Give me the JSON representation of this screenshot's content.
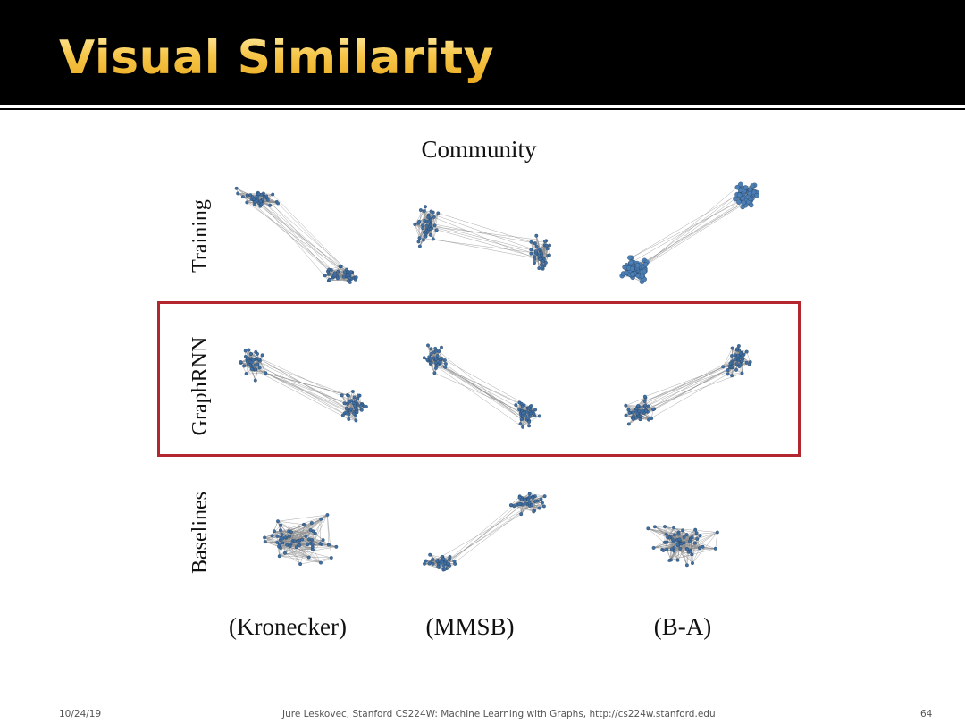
{
  "slide": {
    "title": "Visual Similarity",
    "figure_title": "Community",
    "rows": [
      "Training",
      "GraphRNN",
      "Baselines"
    ],
    "columns": [
      "(Kronecker)",
      "(MMSB)",
      "(B-A)"
    ],
    "footer": {
      "date": "10/24/19",
      "credit": "Jure Leskovec, Stanford CS224W: Machine Learning with Graphs, http://cs224w.stanford.edu",
      "page": "64"
    }
  },
  "colors": {
    "title_gold": "#f6c64a",
    "highlight": "#b3262d",
    "node": "#3f6fa3",
    "edge": "#8c8c8c"
  }
}
